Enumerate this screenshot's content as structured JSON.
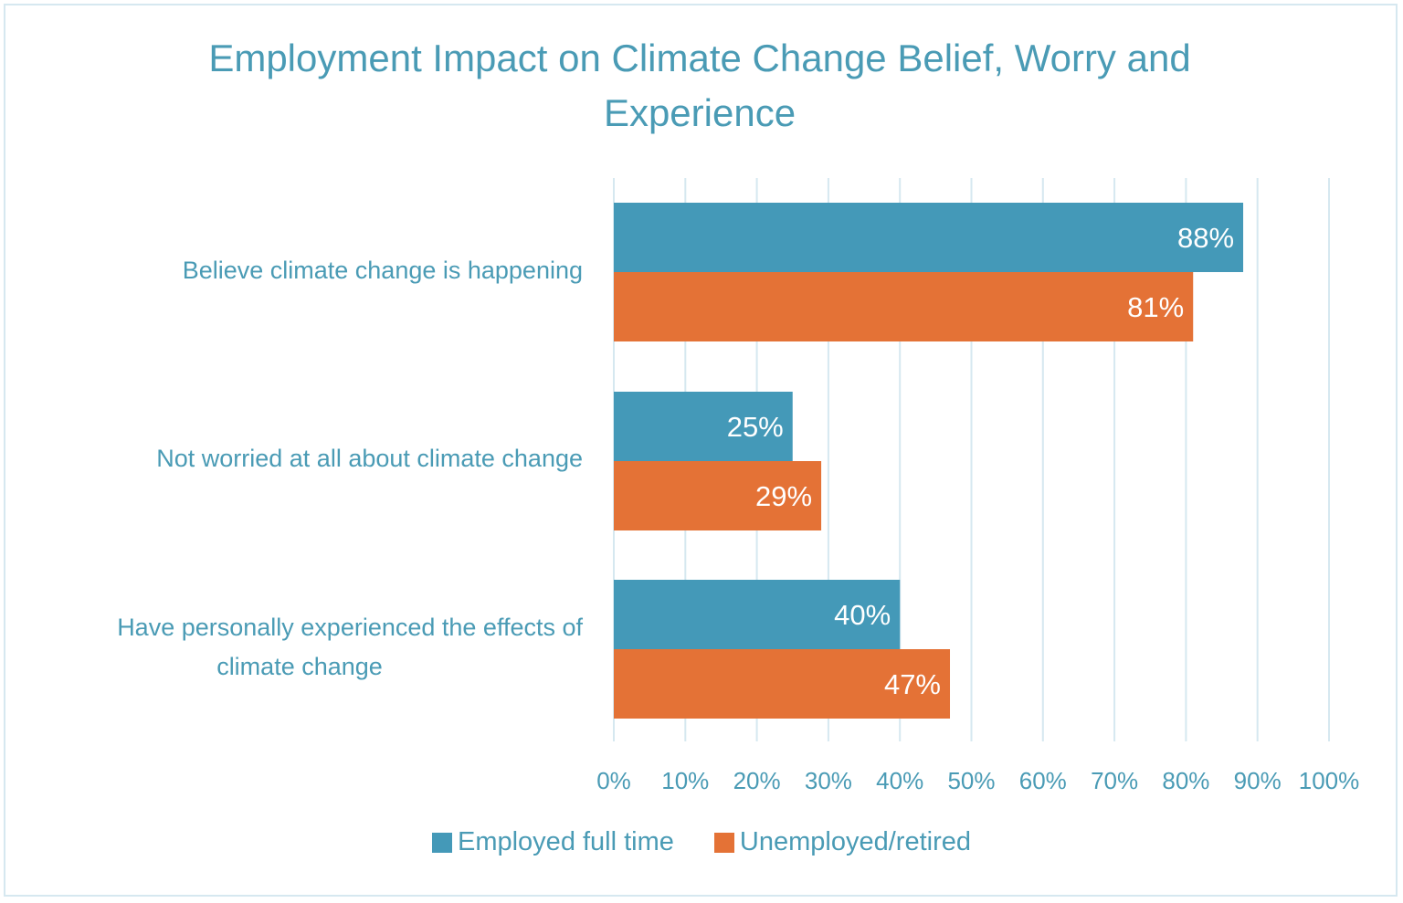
{
  "chart_data": {
    "type": "bar",
    "orientation": "horizontal",
    "title": "Employment Impact on Climate Change Belief, Worry and Experience",
    "title_lines": [
      "Employment Impact on Climate Change Belief, Worry and",
      "Experience"
    ],
    "categories": [
      "Believe climate change is happening",
      "Not worried at all about climate change",
      "Have personally experienced the effects of climate change"
    ],
    "category_lines": [
      [
        "Believe climate change is happening"
      ],
      [
        "Not worried at all about climate change"
      ],
      [
        "Have personally experienced the effects of",
        "climate change"
      ]
    ],
    "series": [
      {
        "name": "Employed full time",
        "color": "#4499b8",
        "values": [
          88,
          25,
          40
        ],
        "labels": [
          "88%",
          "25%",
          "40%"
        ]
      },
      {
        "name": "Unemployed/retired",
        "color": "#e47236",
        "values": [
          81,
          29,
          47
        ],
        "labels": [
          "81%",
          "29%",
          "47%"
        ]
      }
    ],
    "xlim": [
      0,
      100
    ],
    "xticks": [
      "0%",
      "10%",
      "20%",
      "30%",
      "40%",
      "50%",
      "60%",
      "70%",
      "80%",
      "90%",
      "100%"
    ],
    "xlabel": "",
    "ylabel": "",
    "grid": "vertical",
    "legend_position": "bottom",
    "text_color": "#4a9bb5",
    "grid_color": "#d6e8f0"
  }
}
